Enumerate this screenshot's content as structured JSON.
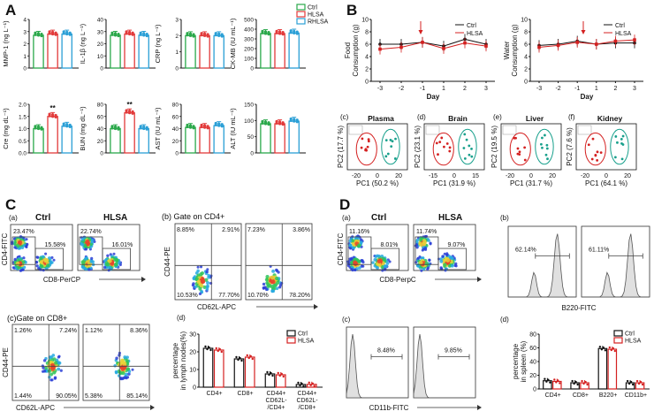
{
  "panels": {
    "A": "A",
    "B": "B",
    "C": "C",
    "D": "D"
  },
  "colors": {
    "ctrl": "#2aa84a",
    "hlsa": "#e23a3a",
    "rhlsa": "#2a9fd6",
    "b_ctrl": "#111111",
    "b_hlsa": "#d42020"
  },
  "chart_data": [
    {
      "type": "bar",
      "id": "A-MMP1",
      "ylabel": "MMP-1 (ng L⁻¹)",
      "ylim": [
        0,
        4
      ],
      "yticks": [
        "0",
        "1",
        "2",
        "3",
        "4"
      ],
      "series": [
        {
          "name": "Ctrl",
          "values": [
            2.7
          ]
        },
        {
          "name": "HLSA",
          "values": [
            2.8
          ]
        },
        {
          "name": "RHLSA",
          "values": [
            2.8
          ]
        }
      ],
      "legend": [
        "Ctrl",
        "HLSA",
        "RHLSA"
      ]
    },
    {
      "type": "bar",
      "id": "A-IL1b",
      "ylabel": "IL-1β (ng L⁻¹)",
      "ylim": [
        0,
        40
      ],
      "yticks": [
        "0",
        "10",
        "20",
        "30",
        "40"
      ],
      "series": [
        {
          "name": "Ctrl",
          "values": [
            27
          ]
        },
        {
          "name": "HLSA",
          "values": [
            28
          ]
        },
        {
          "name": "RHLSA",
          "values": [
            27
          ]
        }
      ]
    },
    {
      "type": "bar",
      "id": "A-CRP",
      "ylabel": "CRP (ng L⁻¹)",
      "ylim": [
        0,
        3
      ],
      "yticks": [
        "0",
        "1",
        "2",
        "3"
      ],
      "series": [
        {
          "name": "Ctrl",
          "values": [
            2.0
          ]
        },
        {
          "name": "HLSA",
          "values": [
            2.0
          ]
        },
        {
          "name": "RHLSA",
          "values": [
            2.0
          ]
        }
      ]
    },
    {
      "type": "bar",
      "id": "A-CKMB",
      "ylabel": "CK-MB (IU mL⁻¹)",
      "ylim": [
        0,
        500
      ],
      "yticks": [
        "0",
        "100",
        "200",
        "300",
        "400",
        "500"
      ],
      "series": [
        {
          "name": "Ctrl",
          "values": [
            355
          ]
        },
        {
          "name": "HLSA",
          "values": [
            355
          ]
        },
        {
          "name": "RHLSA",
          "values": [
            360
          ]
        }
      ]
    },
    {
      "type": "bar",
      "id": "A-Cre",
      "ylabel": "Cre (mg dL⁻¹)",
      "ylim": [
        0,
        2.0
      ],
      "yticks": [
        "0.0",
        "0.5",
        "1.0",
        "1.5",
        "2.0"
      ],
      "series": [
        {
          "name": "Ctrl",
          "values": [
            1.0
          ]
        },
        {
          "name": "HLSA",
          "values": [
            1.5
          ]
        },
        {
          "name": "RHLSA",
          "values": [
            1.1
          ]
        }
      ],
      "annotation": "**"
    },
    {
      "type": "bar",
      "id": "A-BUN",
      "ylabel": "BUN (mg dL⁻¹)",
      "ylim": [
        0,
        80
      ],
      "yticks": [
        "0",
        "20",
        "40",
        "60",
        "80"
      ],
      "series": [
        {
          "name": "Ctrl",
          "values": [
            40
          ]
        },
        {
          "name": "HLSA",
          "values": [
            66
          ]
        },
        {
          "name": "RHLSA",
          "values": [
            40
          ]
        }
      ],
      "annotation": "**"
    },
    {
      "type": "bar",
      "id": "A-AST",
      "ylabel": "AST (IU mL⁻¹)",
      "ylim": [
        0,
        80
      ],
      "yticks": [
        "0",
        "20",
        "40",
        "60",
        "80"
      ],
      "series": [
        {
          "name": "Ctrl",
          "values": [
            42
          ]
        },
        {
          "name": "HLSA",
          "values": [
            42
          ]
        },
        {
          "name": "RHLSA",
          "values": [
            45
          ]
        }
      ]
    },
    {
      "type": "bar",
      "id": "A-ALT",
      "ylabel": "ALT (IU mL⁻¹)",
      "ylim": [
        0,
        150
      ],
      "yticks": [
        "0",
        "50",
        "100",
        "150"
      ],
      "series": [
        {
          "name": "Ctrl",
          "values": [
            90
          ]
        },
        {
          "name": "HLSA",
          "values": [
            90
          ]
        },
        {
          "name": "RHLSA",
          "values": [
            98
          ]
        }
      ]
    },
    {
      "type": "line",
      "id": "B-food",
      "ylabel": "Food Consumption (g)",
      "xlabel": "Day",
      "x": [
        "-3",
        "-2",
        "-1",
        "1",
        "2",
        "3"
      ],
      "ylim": [
        0,
        10
      ],
      "yticks": [
        "0",
        "2",
        "4",
        "6",
        "8",
        "10"
      ],
      "series": [
        {
          "name": "Ctrl",
          "values": [
            6.0,
            6.0,
            6.3,
            5.7,
            6.8,
            6.0
          ]
        },
        {
          "name": "HLSA",
          "values": [
            5.2,
            5.5,
            6.3,
            5.3,
            6.2,
            5.7
          ]
        }
      ],
      "legend": [
        "Ctrl",
        "HLSA"
      ]
    },
    {
      "type": "line",
      "id": "B-water",
      "ylabel": "Water Consumption (g)",
      "xlabel": "Day",
      "x": [
        "-3",
        "-2",
        "-1",
        "1",
        "2",
        "3"
      ],
      "ylim": [
        0,
        10
      ],
      "yticks": [
        "0",
        "2",
        "4",
        "6",
        "8",
        "10"
      ],
      "series": [
        {
          "name": "Ctrl",
          "values": [
            5.8,
            6.0,
            6.5,
            6.0,
            6.2,
            6.2
          ]
        },
        {
          "name": "HLSA",
          "values": [
            5.5,
            5.8,
            6.3,
            6.0,
            6.5,
            6.7
          ]
        }
      ],
      "legend": [
        "Ctrl",
        "HLSA"
      ]
    },
    {
      "type": "scatter",
      "id": "B-plasma",
      "title": "Plasma",
      "xlabel": "PC1 (50.2 %)",
      "ylabel": "PC2 (17.7 %)",
      "xticks": [
        "-20",
        "0",
        "20"
      ]
    },
    {
      "type": "scatter",
      "id": "B-brain",
      "title": "Brain",
      "xlabel": "PC1 (31.9 %)",
      "ylabel": "PC2 (23.1 %)",
      "xticks": [
        "-15",
        "0",
        "15"
      ]
    },
    {
      "type": "scatter",
      "id": "B-liver",
      "title": "Liver",
      "xlabel": "PC1 (31.7 %)",
      "ylabel": "PC2 (19.5 %)",
      "xticks": [
        "-20",
        "0",
        "20"
      ]
    },
    {
      "type": "scatter",
      "id": "B-kidney",
      "title": "Kidney",
      "xlabel": "PC1 (64.1 %)",
      "ylabel": "PC2 (7.6 %)",
      "xticks": [
        "-20",
        "0",
        "20"
      ]
    },
    {
      "type": "bar",
      "id": "C-d",
      "ylabel": "percentage in lymph nodes(%)",
      "ylim": [
        0,
        30
      ],
      "yticks": [
        "0",
        "10",
        "20",
        "30"
      ],
      "categories": [
        "CD4+",
        "CD8+",
        "CD44+ CD62L- /CD4+",
        "CD44+ CD62L- /CD8+"
      ],
      "series": [
        {
          "name": "Ctrl",
          "values": [
            22,
            16,
            7.5,
            1.5
          ]
        },
        {
          "name": "HLSA",
          "values": [
            21,
            17,
            7.0,
            1.6
          ]
        }
      ],
      "legend": [
        "Ctrl",
        "HLSA"
      ]
    },
    {
      "type": "bar",
      "id": "D-d",
      "ylabel": "percentage in spleen (%)",
      "ylim": [
        0,
        80
      ],
      "yticks": [
        "0",
        "20",
        "40",
        "60",
        "80"
      ],
      "categories": [
        "CD4+",
        "CD8+",
        "B220+",
        "CD11b+"
      ],
      "series": [
        {
          "name": "Ctrl",
          "values": [
            12,
            9,
            59,
            9
          ]
        },
        {
          "name": "HLSA",
          "values": [
            11,
            9,
            58,
            9
          ]
        }
      ],
      "legend": [
        "Ctrl",
        "HLSA"
      ]
    }
  ],
  "B_sub": {
    "c": "(c)",
    "d": "(d)",
    "e": "(e)",
    "f": "(f)"
  },
  "C_sub": {
    "a": "(a)",
    "b": "(b) Gate on CD4+",
    "c": "(c)Gate on CD8+",
    "d": "(d)"
  },
  "C_flow": {
    "ctrl": "Ctrl",
    "hlsa": "HLSA",
    "a_ctrl": [
      "23.47%",
      "15.58%"
    ],
    "a_hlsa": [
      "22.74%",
      "16.01%"
    ],
    "a_x": "CD8-PerCP",
    "a_y": "CD4-FITC",
    "b_ctrl": [
      "8.85%",
      "2.91%",
      "10.53%",
      "77.70%"
    ],
    "b_hlsa": [
      "7.23%",
      "3.86%",
      "10.70%",
      "78.20%"
    ],
    "b_x": "CD62L-APC",
    "b_y": "CD44-PE",
    "c_ctrl": [
      "1.26%",
      "7.24%",
      "1.44%",
      "90.05%"
    ],
    "c_hlsa": [
      "1.12%",
      "8.36%",
      "5.38%",
      "85.14%"
    ],
    "c_x": "CD62L-APC",
    "c_y": "CD44-PE"
  },
  "D_sub": {
    "a": "(a)",
    "b": "(b)",
    "c": "(c)",
    "d": "(d)"
  },
  "D_flow": {
    "ctrl": "Ctrl",
    "hlsa": "HLSA",
    "a_ctrl": [
      "11.16%",
      "8.01%"
    ],
    "a_hlsa": [
      "11.74%",
      "9.07%"
    ],
    "a_x": "CD8-PerpC",
    "a_y": "CD4-FITC",
    "b_vals": [
      "62.14%",
      "61.11%"
    ],
    "b_x": "B220-FITC",
    "c_vals": [
      "8.48%",
      "9.85%"
    ],
    "c_x": "CD11b-FITC"
  }
}
